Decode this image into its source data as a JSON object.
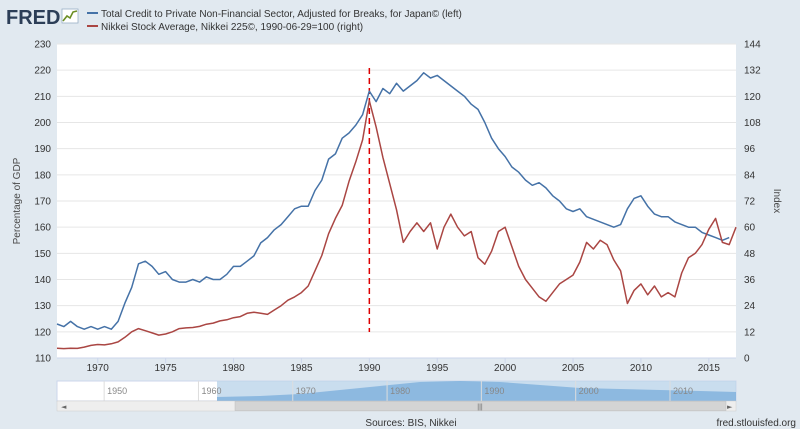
{
  "brand": {
    "name": "FRED"
  },
  "legend": [
    {
      "label": "Total Credit to Private Non-Financial Sector, Adjusted for Breaks, for Japan© (left)",
      "color": "#4572a7"
    },
    {
      "label": "Nikkei Stock Average, Nikkei 225©, 1990-06-29=100 (right)",
      "color": "#aa4643"
    }
  ],
  "axes": {
    "left_title": "Percentage of GDP",
    "right_title": "Index",
    "left_ticks": [
      "110",
      "120",
      "130",
      "140",
      "150",
      "160",
      "170",
      "180",
      "190",
      "200",
      "210",
      "220",
      "230"
    ],
    "right_ticks": [
      "0",
      "12",
      "24",
      "36",
      "48",
      "60",
      "72",
      "84",
      "96",
      "108",
      "120",
      "132",
      "144"
    ],
    "x_ticks": [
      "1970",
      "1975",
      "1980",
      "1985",
      "1990",
      "1995",
      "2000",
      "2005",
      "2010",
      "2015"
    ]
  },
  "navigator": {
    "ticks": [
      "1950",
      "1960",
      "1970",
      "1980",
      "1990",
      "2000",
      "2010"
    ],
    "scroll_left": "◄",
    "scroll_right": "►",
    "grip": "|||"
  },
  "footer": {
    "sources": "Sources: BIS, Nikkei",
    "site": "fred.stlouisfed.org"
  },
  "chart_data": {
    "type": "line",
    "x_range": [
      1967,
      2017
    ],
    "left_ylim": [
      110,
      230
    ],
    "right_ylim": [
      0,
      144
    ],
    "grid": true,
    "legend_position": "top-left",
    "annotation": {
      "type": "vertical-dashed-line",
      "x": 1990,
      "color": "#dd0000"
    },
    "series": [
      {
        "name": "Total Credit to Private Non-Financial Sector, Adjusted for Breaks, for Japan© (left)",
        "axis": "left",
        "color": "#4572a7",
        "points": [
          [
            1967.0,
            123
          ],
          [
            1967.5,
            122
          ],
          [
            1968.0,
            124
          ],
          [
            1968.5,
            122
          ],
          [
            1969.0,
            121
          ],
          [
            1969.5,
            122
          ],
          [
            1970.0,
            121
          ],
          [
            1970.5,
            122
          ],
          [
            1971.0,
            121
          ],
          [
            1971.5,
            124
          ],
          [
            1972.0,
            131
          ],
          [
            1972.5,
            137
          ],
          [
            1973.0,
            146
          ],
          [
            1973.5,
            147
          ],
          [
            1974.0,
            145
          ],
          [
            1974.5,
            142
          ],
          [
            1975.0,
            143
          ],
          [
            1975.5,
            140
          ],
          [
            1976.0,
            139
          ],
          [
            1976.5,
            139
          ],
          [
            1977.0,
            140
          ],
          [
            1977.5,
            139
          ],
          [
            1978.0,
            141
          ],
          [
            1978.5,
            140
          ],
          [
            1979.0,
            140
          ],
          [
            1979.5,
            142
          ],
          [
            1980.0,
            145
          ],
          [
            1980.5,
            145
          ],
          [
            1981.0,
            147
          ],
          [
            1981.5,
            149
          ],
          [
            1982.0,
            154
          ],
          [
            1982.5,
            156
          ],
          [
            1983.0,
            159
          ],
          [
            1983.5,
            161
          ],
          [
            1984.0,
            164
          ],
          [
            1984.5,
            167
          ],
          [
            1985.0,
            168
          ],
          [
            1985.5,
            168
          ],
          [
            1986.0,
            174
          ],
          [
            1986.5,
            178
          ],
          [
            1987.0,
            186
          ],
          [
            1987.5,
            188
          ],
          [
            1988.0,
            194
          ],
          [
            1988.5,
            196
          ],
          [
            1989.0,
            199
          ],
          [
            1989.5,
            203
          ],
          [
            1990.0,
            212
          ],
          [
            1990.5,
            208
          ],
          [
            1991.0,
            213
          ],
          [
            1991.5,
            211
          ],
          [
            1992.0,
            215
          ],
          [
            1992.5,
            212
          ],
          [
            1993.0,
            214
          ],
          [
            1993.5,
            216
          ],
          [
            1994.0,
            219
          ],
          [
            1994.5,
            217
          ],
          [
            1995.0,
            218
          ],
          [
            1995.5,
            216
          ],
          [
            1996.0,
            214
          ],
          [
            1996.5,
            212
          ],
          [
            1997.0,
            210
          ],
          [
            1997.5,
            207
          ],
          [
            1998.0,
            205
          ],
          [
            1998.5,
            200
          ],
          [
            1999.0,
            194
          ],
          [
            1999.5,
            190
          ],
          [
            2000.0,
            187
          ],
          [
            2000.5,
            183
          ],
          [
            2001.0,
            181
          ],
          [
            2001.5,
            178
          ],
          [
            2002.0,
            176
          ],
          [
            2002.5,
            177
          ],
          [
            2003.0,
            175
          ],
          [
            2003.5,
            172
          ],
          [
            2004.0,
            170
          ],
          [
            2004.5,
            167
          ],
          [
            2005.0,
            166
          ],
          [
            2005.5,
            167
          ],
          [
            2006.0,
            164
          ],
          [
            2006.5,
            163
          ],
          [
            2007.0,
            162
          ],
          [
            2007.5,
            161
          ],
          [
            2008.0,
            160
          ],
          [
            2008.5,
            161
          ],
          [
            2009.0,
            167
          ],
          [
            2009.5,
            171
          ],
          [
            2010.0,
            172
          ],
          [
            2010.5,
            168
          ],
          [
            2011.0,
            165
          ],
          [
            2011.5,
            164
          ],
          [
            2012.0,
            164
          ],
          [
            2012.5,
            162
          ],
          [
            2013.0,
            161
          ],
          [
            2013.5,
            160
          ],
          [
            2014.0,
            160
          ],
          [
            2014.5,
            158
          ],
          [
            2015.0,
            157
          ],
          [
            2015.5,
            156
          ],
          [
            2016.0,
            155
          ],
          [
            2016.5,
            156
          ]
        ]
      },
      {
        "name": "Nikkei Stock Average, Nikkei 225©, 1990-06-29=100 (right)",
        "axis": "right",
        "color": "#aa4643",
        "points": [
          [
            1967.0,
            4.5
          ],
          [
            1967.5,
            4.3
          ],
          [
            1968.0,
            4.5
          ],
          [
            1968.5,
            4.4
          ],
          [
            1969.0,
            5.0
          ],
          [
            1969.5,
            5.8
          ],
          [
            1970.0,
            6.2
          ],
          [
            1970.5,
            6.0
          ],
          [
            1971.0,
            6.5
          ],
          [
            1971.5,
            7.4
          ],
          [
            1972.0,
            9.5
          ],
          [
            1972.5,
            12.0
          ],
          [
            1973.0,
            13.5
          ],
          [
            1973.5,
            12.5
          ],
          [
            1974.0,
            11.5
          ],
          [
            1974.5,
            10.5
          ],
          [
            1975.0,
            11.0
          ],
          [
            1975.5,
            12.0
          ],
          [
            1976.0,
            13.5
          ],
          [
            1976.5,
            13.8
          ],
          [
            1977.0,
            14.0
          ],
          [
            1977.5,
            14.5
          ],
          [
            1978.0,
            15.5
          ],
          [
            1978.5,
            16.0
          ],
          [
            1979.0,
            17.0
          ],
          [
            1979.5,
            17.5
          ],
          [
            1980.0,
            18.5
          ],
          [
            1980.5,
            19.0
          ],
          [
            1981.0,
            20.5
          ],
          [
            1981.5,
            21.0
          ],
          [
            1982.0,
            20.5
          ],
          [
            1982.5,
            20.0
          ],
          [
            1983.0,
            22.0
          ],
          [
            1983.5,
            24.0
          ],
          [
            1984.0,
            26.5
          ],
          [
            1984.5,
            28.0
          ],
          [
            1985.0,
            30.0
          ],
          [
            1985.5,
            33.0
          ],
          [
            1986.0,
            40.0
          ],
          [
            1986.5,
            47.0
          ],
          [
            1987.0,
            57.0
          ],
          [
            1987.5,
            64.0
          ],
          [
            1988.0,
            70.0
          ],
          [
            1988.5,
            81.0
          ],
          [
            1989.0,
            90.0
          ],
          [
            1989.5,
            100.0
          ],
          [
            1990.0,
            118.0
          ],
          [
            1990.5,
            106.0
          ],
          [
            1991.0,
            92.0
          ],
          [
            1991.5,
            80.0
          ],
          [
            1992.0,
            68.0
          ],
          [
            1992.5,
            53.0
          ],
          [
            1993.0,
            58.0
          ],
          [
            1993.5,
            62.0
          ],
          [
            1994.0,
            58.0
          ],
          [
            1994.5,
            62.0
          ],
          [
            1995.0,
            50.0
          ],
          [
            1995.5,
            60.0
          ],
          [
            1996.0,
            66.0
          ],
          [
            1996.5,
            60.0
          ],
          [
            1997.0,
            56.0
          ],
          [
            1997.5,
            58.0
          ],
          [
            1998.0,
            46.0
          ],
          [
            1998.5,
            43.0
          ],
          [
            1999.0,
            49.0
          ],
          [
            1999.5,
            58.0
          ],
          [
            2000.0,
            60.0
          ],
          [
            2000.5,
            51.0
          ],
          [
            2001.0,
            42.0
          ],
          [
            2001.5,
            36.0
          ],
          [
            2002.0,
            32.0
          ],
          [
            2002.5,
            28.0
          ],
          [
            2003.0,
            26.0
          ],
          [
            2003.5,
            30.0
          ],
          [
            2004.0,
            34.0
          ],
          [
            2004.5,
            36.0
          ],
          [
            2005.0,
            38.0
          ],
          [
            2005.5,
            44.0
          ],
          [
            2006.0,
            53.0
          ],
          [
            2006.5,
            50.0
          ],
          [
            2007.0,
            54.0
          ],
          [
            2007.5,
            52.0
          ],
          [
            2008.0,
            45.0
          ],
          [
            2008.5,
            40.0
          ],
          [
            2009.0,
            25.0
          ],
          [
            2009.5,
            31.0
          ],
          [
            2010.0,
            34.0
          ],
          [
            2010.5,
            29.0
          ],
          [
            2011.0,
            33.0
          ],
          [
            2011.5,
            28.0
          ],
          [
            2012.0,
            30.0
          ],
          [
            2012.5,
            28.0
          ],
          [
            2013.0,
            39.0
          ],
          [
            2013.5,
            46.0
          ],
          [
            2014.0,
            48.0
          ],
          [
            2014.5,
            52.0
          ],
          [
            2015.0,
            59.0
          ],
          [
            2015.5,
            64.0
          ],
          [
            2016.0,
            53.0
          ],
          [
            2016.5,
            52.0
          ],
          [
            2017.0,
            60.0
          ]
        ]
      }
    ]
  }
}
